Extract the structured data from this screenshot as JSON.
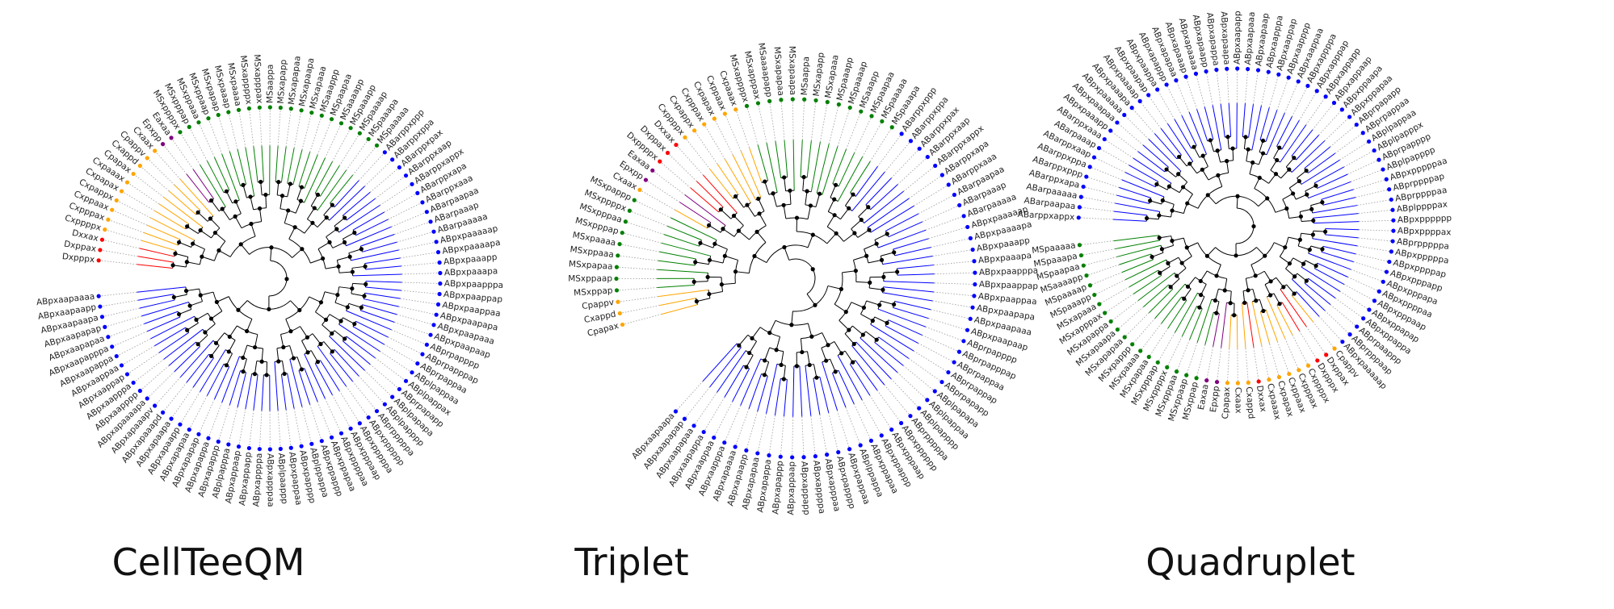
{
  "colors": {
    "AB": "#0000ff",
    "MS": "#008000",
    "C": "#ffa500",
    "D": "#ff0000",
    "E": "#800080",
    "internal": "#000000",
    "guide": "#999999"
  },
  "trees": [
    {
      "title": "CellTeeQM",
      "leaves": [
        "Dxpppx",
        "Dxppax",
        "Dxxax",
        "Cxppppx",
        "Cxpppax",
        "Cxppaax",
        "Cxpappx",
        "Cxpapax",
        "Cxpaaax",
        "Cpapax",
        "Cxappd",
        "Cpappv",
        "Cxaax",
        "Epxpp",
        "Eaxaa",
        "MSxppppx",
        "MSxpppap",
        "MSxppaaa",
        "MSxppaap",
        "MSxpapap",
        "MSxpaaap",
        "MSxpaaaa",
        "MSxappppx",
        "MSxapppax",
        "MSaappa",
        "MSxapapp",
        "MSxapapaa",
        "MSxapaapa",
        "MSxapaaa",
        "MSaaappp",
        "MSpaapaa",
        "MSaaaapp",
        "MSpaaapp",
        "MSpaaaap",
        "MSpaaapa",
        "MSpaaaaa",
        "ABarppxppp",
        "ABarppxppa",
        "ABarppxpax",
        "ABarppxaap",
        "ABarppxappx",
        "ABarppxapa",
        "ABarppxaaa",
        "ABarpaapaa",
        "ABarpaaap",
        "ABarpaaaaa",
        "ABpxpaaaaap",
        "ABpxpaaaapa",
        "ABpxpaaapp",
        "ABpxpaaapa",
        "ABpxpaapppa",
        "ABpxpaappap",
        "ABpxpaappaa",
        "ABpxpaapapa",
        "ABpxpaapaaa",
        "ABpxpaapaap",
        "ABprpapppp",
        "ABprpapppap",
        "ABprpappaa",
        "ABplpappaa",
        "ABplpappax",
        "ABprpapapp",
        "ABplpapapa",
        "ABplpapppp",
        "ABprpppppa",
        "ABpxpppppp",
        "ABpxpppppa",
        "ABpxpppaap",
        "ABpxppppaa",
        "ABpxppapaa",
        "ABpxppappp",
        "ABplppappa",
        "ABpxpapppp",
        "ABpxpappaa",
        "ABplpaappp",
        "ABpxapppaa",
        "ABpxappppa",
        "ABpxappapp",
        "ABpxappaap",
        "ABplpapppa",
        "ABpxapappp",
        "ABpxapappa",
        "ABpxapapap",
        "ABpxapapaa",
        "ABpxapaapp",
        "ABpxapaapa",
        "ABpxapaaapd",
        "ABpxapaaapv",
        "ABpxapaaaapa",
        "ABpxaapppp",
        "ABpxaapppa",
        "ABpxaappap",
        "ABpxaappaa",
        "ABpxaapappa",
        "ABpxaapapppa",
        "ABpxaapapaa",
        "ABpxaapapap",
        "ABpxaapaapa",
        "ABpxaapaapp",
        "ABpxaapaaaa"
      ]
    },
    {
      "title": "Triplet",
      "leaves": [
        "Cpapax",
        "Cxappd",
        "Cpappv",
        "MSxppap",
        "MSxppaap",
        "MSxpapaa",
        "MSxppaaa",
        "MSxpaaaa",
        "MSxpppap",
        "MSxpppaa",
        "MSxppppx",
        "MSxpappp",
        "Cxaax",
        "Epxpp",
        "Eaxaa",
        "Dxppppx",
        "Dxppax",
        "Dxxax",
        "Cxppppx",
        "Cxpappx",
        "Cxpppax",
        "Cxpapax",
        "Cxppaax",
        "Cxpaaax",
        "MSxappppx",
        "MSxapppax",
        "MSaaaapapp",
        "MSxapapaa",
        "MSxapaapa",
        "MSaappa",
        "MSxapapp",
        "MSxapaaa",
        "MSpaaapp",
        "MSpaaaap",
        "MSaaapp",
        "MSpaapaa",
        "MSpaaaaa",
        "MSpaaapa",
        "ABarppxppp",
        "ABarppxppa",
        "ABarppxpax",
        "ABarppxaap",
        "ABarppxappx",
        "ABarppxapa",
        "ABarppxaaa",
        "ABarpaapaa",
        "ABarpaaap",
        "ABarpaaaaa",
        "ABpxpaaaaap",
        "ABpxpaaaapa",
        "ABpxpaaapp",
        "ABpxpaaapa",
        "ABpxpaapppa",
        "ABpxpaappap",
        "ABpxpaappaa",
        "ABpxpaapapa",
        "ABpxpaapaaa",
        "ABpxpaapaap",
        "ABprpapppp",
        "ABprpapppap",
        "ABprpappaa",
        "ABprpappap",
        "ABprpapapp",
        "ABplpapapa",
        "ABplpappaa",
        "ABplpapppp",
        "ABprpppppa",
        "ABpxpppppp",
        "ABpxpppaap",
        "ABpxppappp",
        "ABpxppapaa",
        "ABplppappa",
        "ABpxpappaa",
        "ABpxpapppp",
        "ABpxapppaa",
        "ABpxappppa",
        "ABpxappapp",
        "ABpxappaap",
        "ABpxapappp",
        "ABpxapappa",
        "ABpxapapaa",
        "ABpxapaapp",
        "ABpxapaaaa",
        "ABpxaapppa",
        "ABpxaappaa",
        "ABpxaapappa",
        "ABpxaapapaa",
        "ABpxaapapap",
        "ABpxaapaapa"
      ]
    },
    {
      "title": "Quadruplet",
      "leaves": [
        "ABarppxappx",
        "ABarpaapaa",
        "ABarpaaaaa",
        "ABarppxapa",
        "ABarppxppp",
        "ABarppxppa",
        "ABarppxaap",
        "ABarpaaap",
        "ABarppxaaa",
        "ABpxpaaapp",
        "ABpxpaapaa",
        "ABpxpaaaaa",
        "ABpxpaaapa",
        "ABpxpaaaap",
        "ABpxpaapap",
        "ABpxpaappa",
        "ABpxapappp",
        "ABpxapapaa",
        "ABpxapaaap",
        "ABpxapaaaa",
        "ABpxapaapp",
        "ABpxapappa",
        "ABpxapaapa",
        "ABpxaapapp",
        "ABpxaapaaa",
        "ABpxaapaap",
        "ABpxaapppa",
        "ABpxaappap",
        "ABpxaapppp",
        "ABpxaappaa",
        "ABpxappppa",
        "ABpxapppap",
        "ABpxappapp",
        "ABpxappaap",
        "ABpxppaapa",
        "ABpxppapaa",
        "ABprpapapp",
        "ABprpappaa",
        "ABplpappaa",
        "ABplpapppx",
        "ABprpapppp",
        "ABplpapppp",
        "ABpxpppppaa",
        "ABprppppap",
        "ABprppppaa",
        "ABplppppax",
        "ABpxpppppp",
        "ABpxppppax",
        "ABprpppppa",
        "ABpxpppppa",
        "ABpxppppap",
        "ABpxpppapp",
        "ABpxpppapa",
        "ABpxppppaa",
        "ABpxpppaap",
        "ABpxppapap",
        "ABpxppappa",
        "ABprpaappp",
        "ABprpppaap",
        "ABpxpaaaaap",
        "Cpappv",
        "Dxppax",
        "Dxpppx",
        "Cxppppx",
        "Cxpppax",
        "Cxppaax",
        "Cxpapax",
        "Cxpaaax",
        "Dxxax",
        "Cxappd",
        "Cxaax",
        "Cpapax",
        "Epxpp",
        "Eaxaa",
        "MSxppap",
        "MSxppaap",
        "MSxpppaa",
        "MSxppppx",
        "MSxpppap",
        "MSxpapaa",
        "MSxpaaaa",
        "MSxpappp",
        "MSxapapaa",
        "MSxapaapa",
        "MSxapappa",
        "MSxapppax",
        "MSxapaaa",
        "MSpaaapp",
        "MSpaaaap",
        "MSaaaapp",
        "MSpaapaa",
        "MSpaaapa",
        "MSpaaaaa"
      ]
    }
  ]
}
